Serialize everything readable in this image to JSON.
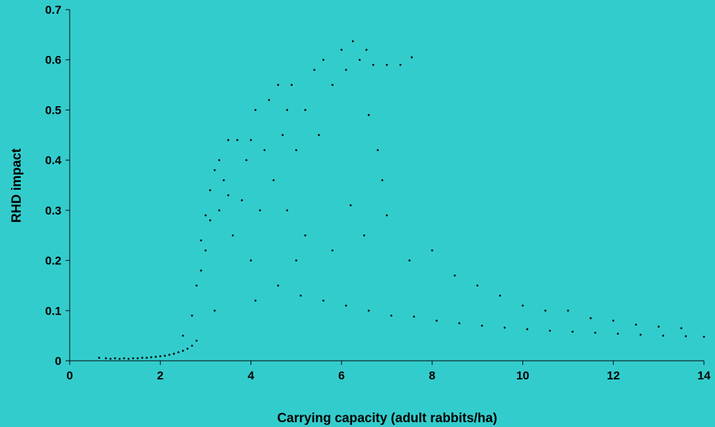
{
  "colors": {
    "background": "#33CCCC",
    "marker": "#000000"
  },
  "chart_data": {
    "type": "scatter",
    "title": "",
    "xlabel": "Carrying capacity (adult rabbits/ha)",
    "ylabel": "RHD impact",
    "xlim": [
      0,
      14
    ],
    "ylim": [
      0,
      0.7
    ],
    "x_ticks": [
      0,
      2,
      4,
      6,
      8,
      10,
      12,
      14
    ],
    "x_tick_labels": [
      "0",
      "2",
      "4",
      "6",
      "8",
      "10",
      "12",
      "14"
    ],
    "y_ticks": [
      0,
      0.1,
      0.2,
      0.3,
      0.4,
      0.5,
      0.6,
      0.7
    ],
    "y_tick_labels": [
      "0",
      "0.1",
      "0.2",
      "0.3",
      "0.4",
      "0.5",
      "0.6",
      "0.7"
    ],
    "grid": false,
    "legend": "none",
    "series": [
      {
        "points": [
          [
            0.65,
            0.006
          ],
          [
            0.8,
            0.005
          ],
          [
            0.9,
            0.004
          ],
          [
            1.0,
            0.005
          ],
          [
            1.1,
            0.004
          ],
          [
            1.2,
            0.005
          ],
          [
            1.3,
            0.004
          ],
          [
            1.4,
            0.005
          ],
          [
            1.5,
            0.005
          ],
          [
            1.6,
            0.006
          ],
          [
            1.7,
            0.006
          ],
          [
            1.8,
            0.007
          ],
          [
            1.9,
            0.008
          ],
          [
            2.0,
            0.009
          ],
          [
            2.1,
            0.01
          ],
          [
            2.2,
            0.012
          ],
          [
            2.3,
            0.014
          ],
          [
            2.4,
            0.017
          ],
          [
            2.5,
            0.02
          ],
          [
            2.6,
            0.024
          ],
          [
            2.7,
            0.03
          ],
          [
            2.8,
            0.04
          ],
          [
            2.5,
            0.05
          ],
          [
            2.7,
            0.09
          ],
          [
            2.8,
            0.15
          ],
          [
            2.9,
            0.18
          ],
          [
            2.9,
            0.24
          ],
          [
            3.0,
            0.22
          ],
          [
            3.0,
            0.29
          ],
          [
            3.1,
            0.28
          ],
          [
            3.1,
            0.34
          ],
          [
            3.2,
            0.38
          ],
          [
            3.2,
            0.1
          ],
          [
            3.3,
            0.3
          ],
          [
            3.3,
            0.4
          ],
          [
            3.4,
            0.36
          ],
          [
            3.5,
            0.33
          ],
          [
            3.5,
            0.44
          ],
          [
            3.6,
            0.25
          ],
          [
            3.7,
            0.44
          ],
          [
            3.8,
            0.32
          ],
          [
            3.9,
            0.4
          ],
          [
            4.0,
            0.44
          ],
          [
            4.0,
            0.2
          ],
          [
            4.1,
            0.5
          ],
          [
            4.2,
            0.3
          ],
          [
            4.3,
            0.42
          ],
          [
            4.4,
            0.52
          ],
          [
            4.5,
            0.36
          ],
          [
            4.6,
            0.55
          ],
          [
            4.7,
            0.45
          ],
          [
            4.8,
            0.5
          ],
          [
            4.9,
            0.55
          ],
          [
            5.0,
            0.42
          ],
          [
            5.0,
            0.2
          ],
          [
            5.2,
            0.5
          ],
          [
            5.4,
            0.58
          ],
          [
            5.5,
            0.45
          ],
          [
            5.6,
            0.6
          ],
          [
            5.8,
            0.55
          ],
          [
            6.0,
            0.62
          ],
          [
            6.1,
            0.58
          ],
          [
            6.25,
            0.637
          ],
          [
            6.4,
            0.6
          ],
          [
            6.55,
            0.62
          ],
          [
            6.7,
            0.59
          ],
          [
            7.0,
            0.59
          ],
          [
            7.3,
            0.59
          ],
          [
            7.55,
            0.605
          ],
          [
            6.6,
            0.49
          ],
          [
            6.8,
            0.42
          ],
          [
            6.9,
            0.36
          ],
          [
            4.1,
            0.12
          ],
          [
            4.6,
            0.15
          ],
          [
            5.1,
            0.13
          ],
          [
            5.6,
            0.12
          ],
          [
            6.1,
            0.11
          ],
          [
            6.6,
            0.1
          ],
          [
            7.1,
            0.09
          ],
          [
            7.6,
            0.088
          ],
          [
            8.1,
            0.08
          ],
          [
            8.6,
            0.075
          ],
          [
            9.1,
            0.07
          ],
          [
            9.6,
            0.066
          ],
          [
            10.1,
            0.063
          ],
          [
            10.6,
            0.06
          ],
          [
            11.1,
            0.058
          ],
          [
            11.6,
            0.056
          ],
          [
            12.1,
            0.054
          ],
          [
            12.6,
            0.052
          ],
          [
            13.1,
            0.05
          ],
          [
            13.6,
            0.049
          ],
          [
            14.0,
            0.048
          ],
          [
            4.8,
            0.3
          ],
          [
            5.2,
            0.25
          ],
          [
            5.8,
            0.22
          ],
          [
            6.2,
            0.31
          ],
          [
            6.5,
            0.25
          ],
          [
            7.0,
            0.29
          ],
          [
            7.5,
            0.2
          ],
          [
            8.0,
            0.22
          ],
          [
            8.5,
            0.17
          ],
          [
            9.0,
            0.15
          ],
          [
            9.5,
            0.13
          ],
          [
            10.0,
            0.11
          ],
          [
            10.5,
            0.1
          ],
          [
            11.0,
            0.1
          ],
          [
            11.5,
            0.085
          ],
          [
            12.0,
            0.08
          ],
          [
            12.5,
            0.072
          ],
          [
            13.0,
            0.068
          ],
          [
            13.5,
            0.065
          ]
        ]
      }
    ]
  }
}
